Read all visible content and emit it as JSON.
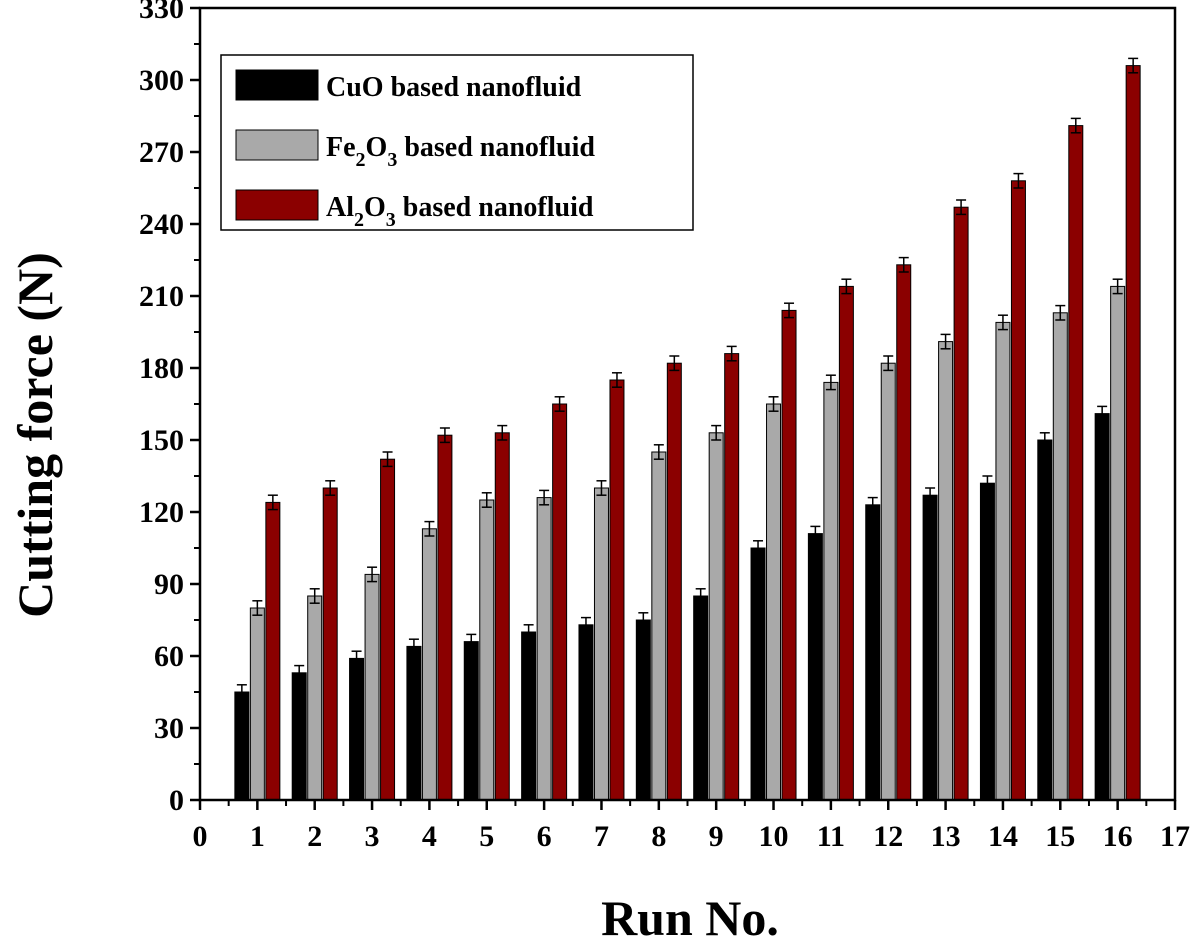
{
  "chart_data": {
    "type": "bar",
    "xlabel": "Run No.",
    "ylabel": "Cutting force (N)",
    "xlim": [
      0,
      17
    ],
    "ylim": [
      0,
      330
    ],
    "x_ticks": [
      0,
      1,
      2,
      3,
      4,
      5,
      6,
      7,
      8,
      9,
      10,
      11,
      12,
      13,
      14,
      15,
      16,
      17
    ],
    "y_ticks": [
      0,
      30,
      60,
      90,
      120,
      150,
      180,
      210,
      240,
      270,
      300,
      330
    ],
    "categories": [
      1,
      2,
      3,
      4,
      5,
      6,
      7,
      8,
      9,
      10,
      11,
      12,
      13,
      14,
      15,
      16
    ],
    "grid": false,
    "legend_position": "top-left",
    "series": [
      {
        "name": "CuO based nanofluid",
        "legend": {
          "main": "CuO based nanofluid",
          "parts": []
        },
        "color": "#000000",
        "values": [
          45,
          53,
          59,
          64,
          66,
          70,
          73,
          75,
          85,
          105,
          111,
          123,
          127,
          132,
          150,
          161
        ],
        "error": [
          3,
          3,
          3,
          3,
          3,
          3,
          3,
          3,
          3,
          3,
          3,
          3,
          3,
          3,
          3,
          3
        ]
      },
      {
        "name": "Fe2O3 based nanofluid",
        "legend": {
          "main": "",
          "parts": [
            [
              "Fe",
              "2",
              "O",
              "3",
              " based nanofluid"
            ]
          ]
        },
        "color": "#a9a9a9",
        "values": [
          80,
          85,
          94,
          113,
          125,
          126,
          130,
          145,
          153,
          165,
          174,
          182,
          191,
          199,
          203,
          214
        ],
        "error": [
          3,
          3,
          3,
          3,
          3,
          3,
          3,
          3,
          3,
          3,
          3,
          3,
          3,
          3,
          3,
          3
        ]
      },
      {
        "name": "Al2O3 based nanofluid",
        "legend": {
          "main": "",
          "parts": [
            [
              "Al",
              "2",
              "O",
              "3",
              " based nanofluid"
            ]
          ]
        },
        "color": "#8b0000",
        "values": [
          124,
          130,
          142,
          152,
          153,
          165,
          175,
          182,
          186,
          204,
          214,
          223,
          247,
          258,
          281,
          306
        ],
        "error": [
          3,
          3,
          3,
          3,
          3,
          3,
          3,
          3,
          3,
          3,
          3,
          3,
          3,
          3,
          3,
          3
        ]
      }
    ]
  }
}
